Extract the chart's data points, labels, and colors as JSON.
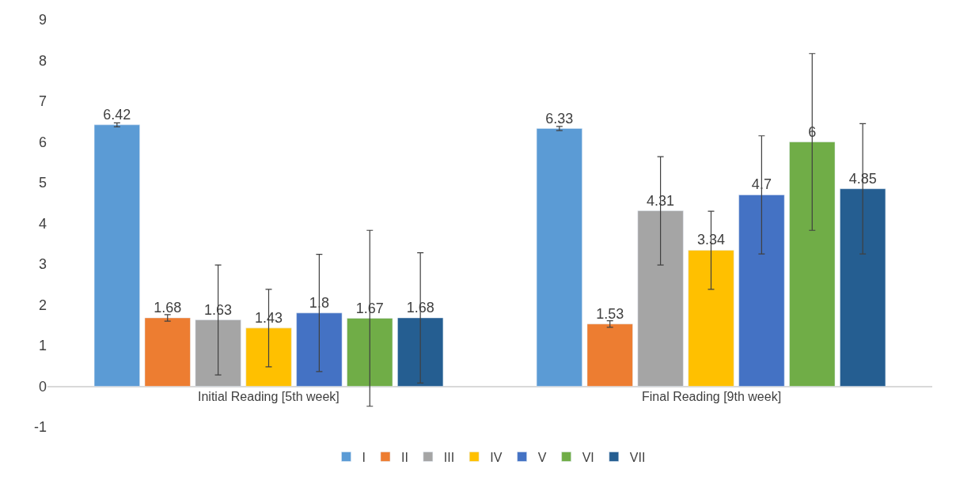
{
  "chart_data": {
    "type": "bar",
    "categories": [
      "Initial Reading [5th week]",
      "Final Reading [9th week]"
    ],
    "series": [
      {
        "name": "I",
        "color": "#5b9bd5",
        "values": [
          6.42,
          6.33
        ],
        "errors": [
          0.05,
          0.05
        ]
      },
      {
        "name": "II",
        "color": "#ed7d31",
        "values": [
          1.68,
          1.53
        ],
        "errors": [
          0.08,
          0.08
        ]
      },
      {
        "name": "III",
        "color": "#a5a5a5",
        "values": [
          1.63,
          4.31
        ],
        "errors": [
          1.35,
          1.33
        ]
      },
      {
        "name": "IV",
        "color": "#ffc000",
        "values": [
          1.43,
          3.34
        ],
        "errors": [
          0.95,
          0.96
        ]
      },
      {
        "name": "V",
        "color": "#4472c4",
        "values": [
          1.8,
          4.7
        ],
        "errors": [
          1.44,
          1.45
        ]
      },
      {
        "name": "VI",
        "color": "#70ad47",
        "values": [
          1.67,
          6
        ],
        "errors": [
          2.16,
          2.17
        ]
      },
      {
        "name": "VII",
        "color": "#255e91",
        "values": [
          1.68,
          4.85
        ],
        "errors": [
          1.6,
          1.6
        ]
      }
    ],
    "ylim": [
      -1,
      9
    ],
    "yticks": [
      -1,
      0,
      1,
      2,
      3,
      4,
      5,
      6,
      7,
      8,
      9
    ],
    "legend": "bottom",
    "data_labels": true
  }
}
